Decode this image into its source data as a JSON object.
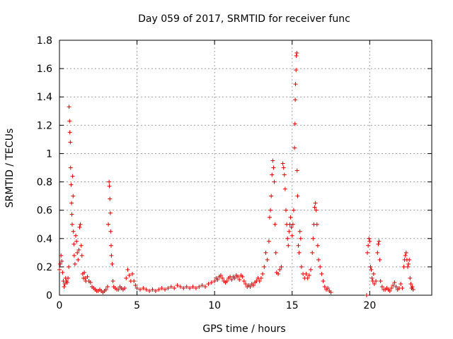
{
  "chart_data": {
    "type": "scatter",
    "title": "Day 059 of 2017, SRMTID for receiver func",
    "xlabel": "GPS time / hours",
    "ylabel": "SRMTID / TECUs",
    "xlim": [
      0,
      24
    ],
    "ylim": [
      0,
      1.8
    ],
    "xticks": [
      0,
      5,
      10,
      15,
      20
    ],
    "yticks": [
      0,
      0.2,
      0.4,
      0.6,
      0.8,
      1,
      1.2,
      1.4,
      1.6,
      1.8
    ],
    "xtick_labels": [
      "0",
      "5",
      "10",
      "15",
      "20"
    ],
    "ytick_labels": [
      "0",
      "0.2",
      "0.4",
      "0.6",
      "0.8",
      "1",
      "1.2",
      "1.4",
      "1.6",
      "1.8"
    ],
    "grid": true,
    "marker": "+",
    "color": "#e00000",
    "series": [
      {
        "name": "SRMTID",
        "points": [
          [
            0.0,
            0.18
          ],
          [
            0.05,
            0.22
          ],
          [
            0.1,
            0.28
          ],
          [
            0.15,
            0.24
          ],
          [
            0.2,
            0.16
          ],
          [
            0.25,
            0.1
          ],
          [
            0.3,
            0.06
          ],
          [
            0.35,
            0.08
          ],
          [
            0.4,
            0.12
          ],
          [
            0.45,
            0.1
          ],
          [
            0.5,
            0.09
          ],
          [
            0.55,
            0.12
          ],
          [
            0.6,
            0.2
          ],
          [
            0.62,
            1.33
          ],
          [
            0.65,
            1.23
          ],
          [
            0.67,
            1.15
          ],
          [
            0.7,
            1.08
          ],
          [
            0.72,
            0.9
          ],
          [
            0.75,
            0.78
          ],
          [
            0.78,
            0.65
          ],
          [
            0.8,
            0.57
          ],
          [
            0.82,
            0.5
          ],
          [
            0.85,
            0.84
          ],
          [
            0.88,
            0.7
          ],
          [
            0.9,
            0.45
          ],
          [
            0.93,
            0.36
          ],
          [
            0.95,
            0.28
          ],
          [
            1.0,
            0.22
          ],
          [
            1.05,
            0.42
          ],
          [
            1.1,
            0.38
          ],
          [
            1.15,
            0.3
          ],
          [
            1.2,
            0.25
          ],
          [
            1.25,
            0.32
          ],
          [
            1.3,
            0.48
          ],
          [
            1.35,
            0.5
          ],
          [
            1.4,
            0.35
          ],
          [
            1.45,
            0.28
          ],
          [
            1.5,
            0.15
          ],
          [
            1.55,
            0.12
          ],
          [
            1.6,
            0.16
          ],
          [
            1.65,
            0.12
          ],
          [
            1.7,
            0.1
          ],
          [
            1.8,
            0.13
          ],
          [
            1.9,
            0.1
          ],
          [
            2.0,
            0.09
          ],
          [
            2.1,
            0.06
          ],
          [
            2.2,
            0.05
          ],
          [
            2.3,
            0.04
          ],
          [
            2.4,
            0.03
          ],
          [
            2.5,
            0.03
          ],
          [
            2.6,
            0.04
          ],
          [
            2.7,
            0.03
          ],
          [
            2.8,
            0.02
          ],
          [
            2.9,
            0.03
          ],
          [
            3.0,
            0.04
          ],
          [
            3.1,
            0.06
          ],
          [
            3.15,
            0.5
          ],
          [
            3.2,
            0.8
          ],
          [
            3.22,
            0.77
          ],
          [
            3.25,
            0.68
          ],
          [
            3.28,
            0.58
          ],
          [
            3.3,
            0.45
          ],
          [
            3.33,
            0.35
          ],
          [
            3.35,
            0.28
          ],
          [
            3.4,
            0.22
          ],
          [
            3.45,
            0.1
          ],
          [
            3.5,
            0.06
          ],
          [
            3.6,
            0.05
          ],
          [
            3.7,
            0.04
          ],
          [
            3.8,
            0.04
          ],
          [
            3.9,
            0.06
          ],
          [
            4.0,
            0.05
          ],
          [
            4.1,
            0.04
          ],
          [
            4.2,
            0.05
          ],
          [
            4.3,
            0.12
          ],
          [
            4.4,
            0.18
          ],
          [
            4.5,
            0.14
          ],
          [
            4.6,
            0.1
          ],
          [
            4.7,
            0.15
          ],
          [
            4.8,
            0.1
          ],
          [
            4.9,
            0.07
          ],
          [
            5.0,
            0.05
          ],
          [
            5.2,
            0.04
          ],
          [
            5.4,
            0.05
          ],
          [
            5.6,
            0.04
          ],
          [
            5.8,
            0.03
          ],
          [
            6.0,
            0.04
          ],
          [
            6.2,
            0.03
          ],
          [
            6.4,
            0.04
          ],
          [
            6.6,
            0.05
          ],
          [
            6.8,
            0.04
          ],
          [
            7.0,
            0.05
          ],
          [
            7.2,
            0.06
          ],
          [
            7.4,
            0.05
          ],
          [
            7.6,
            0.07
          ],
          [
            7.8,
            0.06
          ],
          [
            8.0,
            0.05
          ],
          [
            8.2,
            0.06
          ],
          [
            8.4,
            0.05
          ],
          [
            8.6,
            0.06
          ],
          [
            8.8,
            0.05
          ],
          [
            9.0,
            0.06
          ],
          [
            9.2,
            0.07
          ],
          [
            9.4,
            0.06
          ],
          [
            9.6,
            0.08
          ],
          [
            9.8,
            0.09
          ],
          [
            10.0,
            0.1
          ],
          [
            10.1,
            0.12
          ],
          [
            10.2,
            0.11
          ],
          [
            10.3,
            0.13
          ],
          [
            10.4,
            0.14
          ],
          [
            10.5,
            0.12
          ],
          [
            10.6,
            0.1
          ],
          [
            10.7,
            0.09
          ],
          [
            10.8,
            0.1
          ],
          [
            10.9,
            0.12
          ],
          [
            11.0,
            0.13
          ],
          [
            11.1,
            0.11
          ],
          [
            11.2,
            0.13
          ],
          [
            11.3,
            0.12
          ],
          [
            11.4,
            0.14
          ],
          [
            11.5,
            0.13
          ],
          [
            11.6,
            0.11
          ],
          [
            11.7,
            0.14
          ],
          [
            11.8,
            0.13
          ],
          [
            11.9,
            0.1
          ],
          [
            12.0,
            0.08
          ],
          [
            12.1,
            0.06
          ],
          [
            12.2,
            0.07
          ],
          [
            12.3,
            0.06
          ],
          [
            12.4,
            0.08
          ],
          [
            12.5,
            0.07
          ],
          [
            12.6,
            0.09
          ],
          [
            12.7,
            0.1
          ],
          [
            12.8,
            0.12
          ],
          [
            12.9,
            0.1
          ],
          [
            13.0,
            0.12
          ],
          [
            13.1,
            0.15
          ],
          [
            13.2,
            0.2
          ],
          [
            13.3,
            0.3
          ],
          [
            13.4,
            0.25
          ],
          [
            13.5,
            0.38
          ],
          [
            13.55,
            0.55
          ],
          [
            13.6,
            0.6
          ],
          [
            13.65,
            0.7
          ],
          [
            13.7,
            0.85
          ],
          [
            13.75,
            0.95
          ],
          [
            13.8,
            0.9
          ],
          [
            13.85,
            0.8
          ],
          [
            13.9,
            0.5
          ],
          [
            13.95,
            0.3
          ],
          [
            14.0,
            0.16
          ],
          [
            14.1,
            0.15
          ],
          [
            14.2,
            0.18
          ],
          [
            14.3,
            0.2
          ],
          [
            14.4,
            0.93
          ],
          [
            14.45,
            0.9
          ],
          [
            14.5,
            0.85
          ],
          [
            14.55,
            0.75
          ],
          [
            14.6,
            0.6
          ],
          [
            14.65,
            0.5
          ],
          [
            14.7,
            0.4
          ],
          [
            14.75,
            0.35
          ],
          [
            14.8,
            0.45
          ],
          [
            14.85,
            0.5
          ],
          [
            14.9,
            0.55
          ],
          [
            14.95,
            0.48
          ],
          [
            15.0,
            0.42
          ],
          [
            15.05,
            0.5
          ],
          [
            15.1,
            0.6
          ],
          [
            15.15,
            1.04
          ],
          [
            15.18,
            1.21
          ],
          [
            15.2,
            1.38
          ],
          [
            15.22,
            1.49
          ],
          [
            15.25,
            1.59
          ],
          [
            15.27,
            1.69
          ],
          [
            15.3,
            1.71
          ],
          [
            15.32,
            0.88
          ],
          [
            15.35,
            0.7
          ],
          [
            15.4,
            0.35
          ],
          [
            15.45,
            0.3
          ],
          [
            15.5,
            0.45
          ],
          [
            15.55,
            0.4
          ],
          [
            15.6,
            0.2
          ],
          [
            15.7,
            0.15
          ],
          [
            15.8,
            0.12
          ],
          [
            15.9,
            0.15
          ],
          [
            16.0,
            0.12
          ],
          [
            16.1,
            0.14
          ],
          [
            16.2,
            0.18
          ],
          [
            16.3,
            0.3
          ],
          [
            16.35,
            0.4
          ],
          [
            16.4,
            0.5
          ],
          [
            16.45,
            0.62
          ],
          [
            16.5,
            0.65
          ],
          [
            16.55,
            0.6
          ],
          [
            16.6,
            0.5
          ],
          [
            16.65,
            0.35
          ],
          [
            16.7,
            0.25
          ],
          [
            16.8,
            0.2
          ],
          [
            16.9,
            0.15
          ],
          [
            17.0,
            0.1
          ],
          [
            17.1,
            0.06
          ],
          [
            17.2,
            0.04
          ],
          [
            17.3,
            0.05
          ],
          [
            17.4,
            0.03
          ],
          [
            17.5,
            0.02
          ],
          [
            19.8,
            0.0
          ],
          [
            19.85,
            0.3
          ],
          [
            19.9,
            0.35
          ],
          [
            19.95,
            0.4
          ],
          [
            20.0,
            0.38
          ],
          [
            20.05,
            0.2
          ],
          [
            20.1,
            0.18
          ],
          [
            20.15,
            0.12
          ],
          [
            20.2,
            0.1
          ],
          [
            20.25,
            0.15
          ],
          [
            20.3,
            0.08
          ],
          [
            20.4,
            0.1
          ],
          [
            20.5,
            0.3
          ],
          [
            20.55,
            0.36
          ],
          [
            20.6,
            0.38
          ],
          [
            20.65,
            0.25
          ],
          [
            20.7,
            0.1
          ],
          [
            20.8,
            0.06
          ],
          [
            20.9,
            0.04
          ],
          [
            21.0,
            0.04
          ],
          [
            21.1,
            0.05
          ],
          [
            21.2,
            0.04
          ],
          [
            21.3,
            0.03
          ],
          [
            21.4,
            0.05
          ],
          [
            21.5,
            0.07
          ],
          [
            21.6,
            0.09
          ],
          [
            21.7,
            0.06
          ],
          [
            21.8,
            0.04
          ],
          [
            21.9,
            0.05
          ],
          [
            22.0,
            0.08
          ],
          [
            22.1,
            0.05
          ],
          [
            22.2,
            0.2
          ],
          [
            22.25,
            0.25
          ],
          [
            22.3,
            0.28
          ],
          [
            22.35,
            0.3
          ],
          [
            22.4,
            0.25
          ],
          [
            22.45,
            0.2
          ],
          [
            22.5,
            0.22
          ],
          [
            22.55,
            0.25
          ],
          [
            22.6,
            0.12
          ],
          [
            22.65,
            0.08
          ],
          [
            22.7,
            0.05
          ],
          [
            22.75,
            0.06
          ],
          [
            22.8,
            0.04
          ]
        ]
      }
    ]
  }
}
